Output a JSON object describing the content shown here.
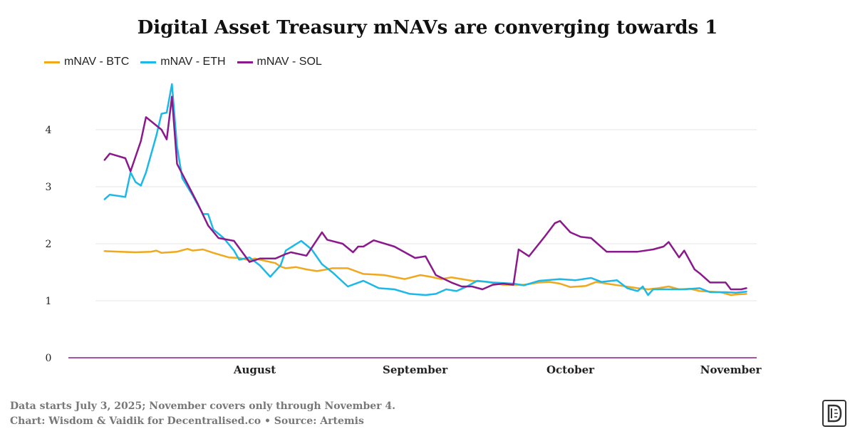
{
  "chart_data": {
    "type": "line",
    "title": "Digital Asset Treasury mNAVs are converging towards 1",
    "x_ticks": [
      "August",
      "September",
      "October",
      "November"
    ],
    "y_ticks": [
      "0",
      "1",
      "2",
      "3",
      "4"
    ],
    "ylim": [
      0,
      4.9
    ],
    "grid": true,
    "legend_position": "top-left",
    "series": [
      {
        "name": "mNAV - BTC",
        "color": "#f0a81c",
        "points": [
          [
            "2025-07-03",
            1.87
          ],
          [
            "2025-07-06",
            1.86
          ],
          [
            "2025-07-09",
            1.85
          ],
          [
            "2025-07-12",
            1.86
          ],
          [
            "2025-07-13",
            1.88
          ],
          [
            "2025-07-14",
            1.84
          ],
          [
            "2025-07-17",
            1.86
          ],
          [
            "2025-07-19",
            1.91
          ],
          [
            "2025-07-20",
            1.88
          ],
          [
            "2025-07-22",
            1.9
          ],
          [
            "2025-07-24",
            1.84
          ],
          [
            "2025-07-27",
            1.76
          ],
          [
            "2025-07-29",
            1.75
          ],
          [
            "2025-07-31",
            1.71
          ],
          [
            "2025-08-01",
            1.74
          ],
          [
            "2025-08-03",
            1.7
          ],
          [
            "2025-08-05",
            1.66
          ],
          [
            "2025-08-06",
            1.6
          ],
          [
            "2025-08-07",
            1.57
          ],
          [
            "2025-08-09",
            1.59
          ],
          [
            "2025-08-11",
            1.55
          ],
          [
            "2025-08-13",
            1.52
          ],
          [
            "2025-08-15",
            1.55
          ],
          [
            "2025-08-16",
            1.57
          ],
          [
            "2025-08-19",
            1.57
          ],
          [
            "2025-08-22",
            1.47
          ],
          [
            "2025-08-26",
            1.45
          ],
          [
            "2025-08-30",
            1.38
          ],
          [
            "2025-09-02",
            1.45
          ],
          [
            "2025-09-04",
            1.42
          ],
          [
            "2025-09-06",
            1.38
          ],
          [
            "2025-09-08",
            1.41
          ],
          [
            "2025-09-10",
            1.38
          ],
          [
            "2025-09-12",
            1.35
          ],
          [
            "2025-09-15",
            1.33
          ],
          [
            "2025-09-18",
            1.28
          ],
          [
            "2025-09-22",
            1.28
          ],
          [
            "2025-09-25",
            1.32
          ],
          [
            "2025-09-27",
            1.33
          ],
          [
            "2025-09-29",
            1.3
          ],
          [
            "2025-10-01",
            1.24
          ],
          [
            "2025-10-04",
            1.26
          ],
          [
            "2025-10-06",
            1.33
          ],
          [
            "2025-10-08",
            1.3
          ],
          [
            "2025-10-11",
            1.26
          ],
          [
            "2025-10-14",
            1.22
          ],
          [
            "2025-10-16",
            1.2
          ],
          [
            "2025-10-18",
            1.22
          ],
          [
            "2025-10-20",
            1.25
          ],
          [
            "2025-10-22",
            1.2
          ],
          [
            "2025-10-24",
            1.21
          ],
          [
            "2025-10-26",
            1.17
          ],
          [
            "2025-10-28",
            1.16
          ],
          [
            "2025-10-30",
            1.15
          ],
          [
            "2025-11-01",
            1.1
          ],
          [
            "2025-11-02",
            1.11
          ],
          [
            "2025-11-04",
            1.12
          ]
        ]
      },
      {
        "name": "mNAV - ETH",
        "color": "#1bb8e8",
        "points": [
          [
            "2025-07-03",
            2.78
          ],
          [
            "2025-07-04",
            2.86
          ],
          [
            "2025-07-07",
            2.82
          ],
          [
            "2025-07-08",
            3.25
          ],
          [
            "2025-07-09",
            3.08
          ],
          [
            "2025-07-10",
            3.02
          ],
          [
            "2025-07-11",
            3.25
          ],
          [
            "2025-07-13",
            3.9
          ],
          [
            "2025-07-14",
            4.28
          ],
          [
            "2025-07-15",
            4.3
          ],
          [
            "2025-07-16",
            4.8
          ],
          [
            "2025-07-17",
            3.7
          ],
          [
            "2025-07-18",
            3.15
          ],
          [
            "2025-07-20",
            2.85
          ],
          [
            "2025-07-22",
            2.52
          ],
          [
            "2025-07-23",
            2.52
          ],
          [
            "2025-07-24",
            2.25
          ],
          [
            "2025-07-26",
            2.1
          ],
          [
            "2025-07-28",
            1.88
          ],
          [
            "2025-07-29",
            1.72
          ],
          [
            "2025-07-31",
            1.76
          ],
          [
            "2025-08-02",
            1.62
          ],
          [
            "2025-08-04",
            1.42
          ],
          [
            "2025-08-06",
            1.62
          ],
          [
            "2025-08-07",
            1.88
          ],
          [
            "2025-08-10",
            2.05
          ],
          [
            "2025-08-12",
            1.9
          ],
          [
            "2025-08-14",
            1.64
          ],
          [
            "2025-08-16",
            1.5
          ],
          [
            "2025-08-19",
            1.25
          ],
          [
            "2025-08-22",
            1.35
          ],
          [
            "2025-08-25",
            1.22
          ],
          [
            "2025-08-28",
            1.2
          ],
          [
            "2025-08-31",
            1.12
          ],
          [
            "2025-09-03",
            1.1
          ],
          [
            "2025-09-05",
            1.12
          ],
          [
            "2025-09-07",
            1.2
          ],
          [
            "2025-09-09",
            1.17
          ],
          [
            "2025-09-11",
            1.25
          ],
          [
            "2025-09-13",
            1.35
          ],
          [
            "2025-09-16",
            1.32
          ],
          [
            "2025-09-20",
            1.3
          ],
          [
            "2025-09-22",
            1.27
          ],
          [
            "2025-09-25",
            1.35
          ],
          [
            "2025-09-29",
            1.38
          ],
          [
            "2025-10-02",
            1.36
          ],
          [
            "2025-10-05",
            1.4
          ],
          [
            "2025-10-07",
            1.33
          ],
          [
            "2025-10-10",
            1.36
          ],
          [
            "2025-10-12",
            1.22
          ],
          [
            "2025-10-14",
            1.17
          ],
          [
            "2025-10-15",
            1.25
          ],
          [
            "2025-10-16",
            1.1
          ],
          [
            "2025-10-17",
            1.2
          ],
          [
            "2025-10-20",
            1.2
          ],
          [
            "2025-10-23",
            1.2
          ],
          [
            "2025-10-26",
            1.22
          ],
          [
            "2025-10-28",
            1.15
          ],
          [
            "2025-10-31",
            1.15
          ],
          [
            "2025-11-02",
            1.14
          ],
          [
            "2025-11-04",
            1.16
          ]
        ]
      },
      {
        "name": "mNAV - SOL",
        "color": "#8a1a8c",
        "points": [
          [
            "2025-07-03",
            3.47
          ],
          [
            "2025-07-04",
            3.58
          ],
          [
            "2025-07-07",
            3.5
          ],
          [
            "2025-07-08",
            3.27
          ],
          [
            "2025-07-10",
            3.8
          ],
          [
            "2025-07-11",
            4.22
          ],
          [
            "2025-07-14",
            4.0
          ],
          [
            "2025-07-15",
            3.83
          ],
          [
            "2025-07-16",
            4.58
          ],
          [
            "2025-07-17",
            3.4
          ],
          [
            "2025-07-19",
            3.05
          ],
          [
            "2025-07-21",
            2.7
          ],
          [
            "2025-07-23",
            2.32
          ],
          [
            "2025-07-25",
            2.1
          ],
          [
            "2025-07-28",
            2.05
          ],
          [
            "2025-07-31",
            1.68
          ],
          [
            "2025-08-02",
            1.74
          ],
          [
            "2025-08-05",
            1.74
          ],
          [
            "2025-08-07",
            1.82
          ],
          [
            "2025-08-08",
            1.85
          ],
          [
            "2025-08-11",
            1.79
          ],
          [
            "2025-08-14",
            2.2
          ],
          [
            "2025-08-15",
            2.07
          ],
          [
            "2025-08-18",
            2.0
          ],
          [
            "2025-08-20",
            1.85
          ],
          [
            "2025-08-21",
            1.95
          ],
          [
            "2025-08-22",
            1.95
          ],
          [
            "2025-08-24",
            2.06
          ],
          [
            "2025-08-28",
            1.95
          ],
          [
            "2025-09-01",
            1.75
          ],
          [
            "2025-09-03",
            1.78
          ],
          [
            "2025-09-05",
            1.45
          ],
          [
            "2025-09-08",
            1.32
          ],
          [
            "2025-09-10",
            1.25
          ],
          [
            "2025-09-12",
            1.25
          ],
          [
            "2025-09-14",
            1.2
          ],
          [
            "2025-09-16",
            1.28
          ],
          [
            "2025-09-18",
            1.3
          ],
          [
            "2025-09-20",
            1.28
          ],
          [
            "2025-09-21",
            1.9
          ],
          [
            "2025-09-23",
            1.78
          ],
          [
            "2025-09-26",
            2.12
          ],
          [
            "2025-09-28",
            2.36
          ],
          [
            "2025-09-29",
            2.4
          ],
          [
            "2025-10-01",
            2.2
          ],
          [
            "2025-10-03",
            2.12
          ],
          [
            "2025-10-05",
            2.1
          ],
          [
            "2025-10-08",
            1.86
          ],
          [
            "2025-10-11",
            1.86
          ],
          [
            "2025-10-14",
            1.86
          ],
          [
            "2025-10-17",
            1.9
          ],
          [
            "2025-10-19",
            1.95
          ],
          [
            "2025-10-20",
            2.03
          ],
          [
            "2025-10-22",
            1.76
          ],
          [
            "2025-10-23",
            1.88
          ],
          [
            "2025-10-25",
            1.55
          ],
          [
            "2025-10-26",
            1.48
          ],
          [
            "2025-10-28",
            1.32
          ],
          [
            "2025-10-31",
            1.32
          ],
          [
            "2025-11-01",
            1.2
          ],
          [
            "2025-11-03",
            1.2
          ],
          [
            "2025-11-04",
            1.22
          ]
        ]
      }
    ]
  },
  "footnote": {
    "line1": "Data starts July 3, 2025; November covers only through November 4.",
    "line2": "Chart: Wisdom & Vaidik for Decentralised.co • Source: Artemis"
  }
}
